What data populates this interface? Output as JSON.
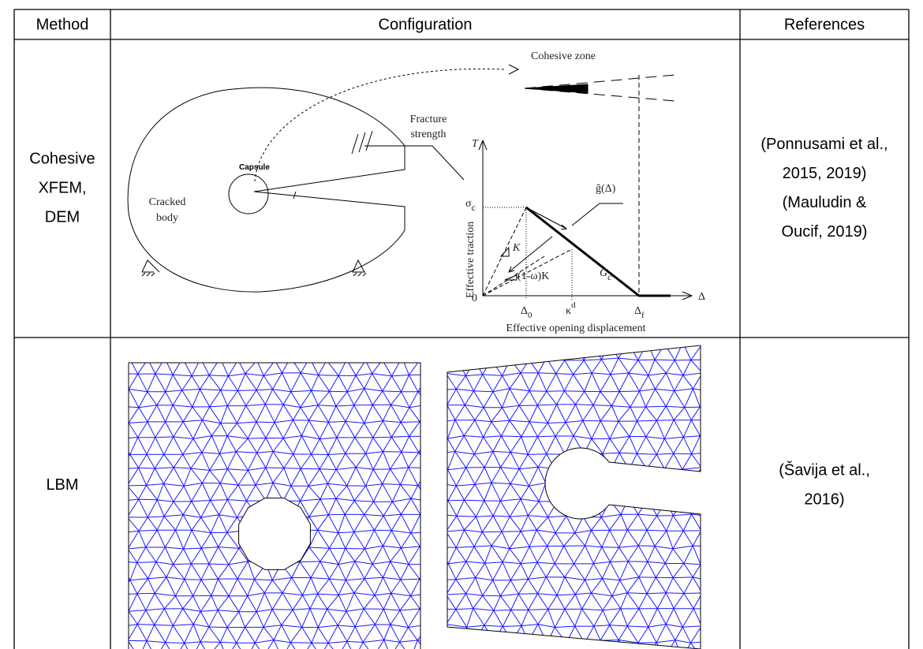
{
  "table": {
    "header": [
      "Method",
      "Configuration",
      "References"
    ],
    "rows": [
      {
        "method": [
          "Cohesive",
          "XFEM,",
          "DEM"
        ],
        "references": [
          "(Ponnusami et al.,",
          "2015, 2019)",
          "(Mauludin &",
          "Oucif, 2019)"
        ],
        "figure": {
          "cohesive_zone": "Cohesive zone",
          "fracture_strength": [
            "Fracture",
            "strength"
          ],
          "capsule": "Capsule",
          "cracked_body": [
            "Cracked",
            "body"
          ],
          "t_axis": "T",
          "sigma": {
            "base": "σ",
            "sub": "c"
          },
          "g_hat": "ĝ(Δ)",
          "y_axis": "Effective traction",
          "k": "K",
          "one_minus_omega_k": "(1-ω)K",
          "g_c": {
            "base": "G",
            "sub": "c"
          },
          "origin": "0",
          "delta_0": {
            "base": "Δ",
            "sub": "0"
          },
          "kappa_d": {
            "base": "κ",
            "sup": "d"
          },
          "delta_f": {
            "base": "Δ",
            "sub": "f"
          },
          "delta": "Δ",
          "x_axis": "Effective opening displacement"
        }
      },
      {
        "method": [
          "LBM"
        ],
        "references": [
          "(Šavija et al.,",
          "2016)"
        ]
      }
    ]
  }
}
